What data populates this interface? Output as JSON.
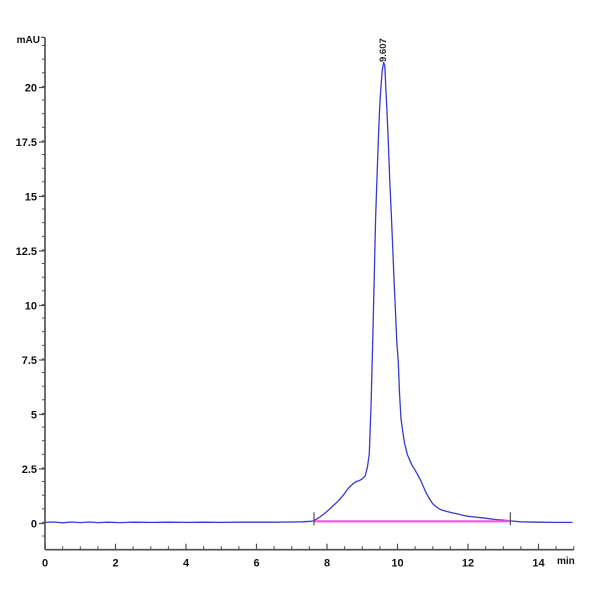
{
  "chart_data": {
    "type": "line",
    "title": "",
    "xlabel": "min",
    "ylabel": "mAU",
    "grid": false,
    "legend": null,
    "x_range": [
      0,
      15
    ],
    "y_range": [
      -1.2,
      22.3
    ],
    "x_ticks_major": [
      0,
      2,
      4,
      6,
      8,
      10,
      12,
      14
    ],
    "x_tick_labels": [
      "0",
      "2",
      "4",
      "6",
      "8",
      "10",
      "12",
      "14"
    ],
    "x_minor_step": 0.5,
    "y_ticks_major": [
      0,
      2.5,
      5,
      7.5,
      10,
      12.5,
      15,
      17.5,
      20
    ],
    "y_tick_labels": [
      "0",
      "2.5",
      "5",
      "7.5",
      "10",
      "12.5",
      "15",
      "17.5",
      "20"
    ],
    "y_minor_step": 0.625,
    "peak": {
      "label": "9.607",
      "retention_time_min": 9.607,
      "height_mAU": 21.15
    },
    "integration": {
      "start_min": 7.63,
      "end_min": 13.2,
      "baseline_mAU": 0.1
    },
    "colors": {
      "trace": "#3a3ace",
      "baseline": "#ff55dd",
      "axis": "#4d4d4d",
      "text": "#111111",
      "marker": "#3f3f3f"
    },
    "series": [
      {
        "name": "UV signal",
        "points": [
          [
            0,
            0.05
          ],
          [
            0.25,
            0.07
          ],
          [
            0.5,
            0.03
          ],
          [
            0.75,
            0.07
          ],
          [
            1.0,
            0.04
          ],
          [
            1.25,
            0.07
          ],
          [
            1.5,
            0.04
          ],
          [
            1.8,
            0.06
          ],
          [
            2.1,
            0.04
          ],
          [
            2.5,
            0.06
          ],
          [
            3.0,
            0.05
          ],
          [
            3.5,
            0.06
          ],
          [
            4.0,
            0.05
          ],
          [
            4.5,
            0.06
          ],
          [
            5.0,
            0.05
          ],
          [
            5.5,
            0.06
          ],
          [
            6.0,
            0.06
          ],
          [
            6.5,
            0.06
          ],
          [
            7.0,
            0.07
          ],
          [
            7.3,
            0.08
          ],
          [
            7.55,
            0.1
          ],
          [
            7.63,
            0.13
          ],
          [
            7.8,
            0.3
          ],
          [
            8.0,
            0.55
          ],
          [
            8.15,
            0.78
          ],
          [
            8.3,
            1.0
          ],
          [
            8.45,
            1.28
          ],
          [
            8.6,
            1.6
          ],
          [
            8.72,
            1.8
          ],
          [
            8.82,
            1.92
          ],
          [
            8.92,
            1.97
          ],
          [
            9.0,
            2.05
          ],
          [
            9.08,
            2.18
          ],
          [
            9.15,
            2.6
          ],
          [
            9.2,
            3.2
          ],
          [
            9.25,
            5.5
          ],
          [
            9.3,
            8.5
          ],
          [
            9.35,
            12.0
          ],
          [
            9.38,
            14.0
          ],
          [
            9.42,
            16.0
          ],
          [
            9.46,
            17.8
          ],
          [
            9.5,
            19.3
          ],
          [
            9.53,
            20.0
          ],
          [
            9.57,
            20.8
          ],
          [
            9.607,
            21.15
          ],
          [
            9.64,
            21.0
          ],
          [
            9.67,
            19.9
          ],
          [
            9.7,
            19.0
          ],
          [
            9.74,
            17.5
          ],
          [
            9.78,
            15.8
          ],
          [
            9.82,
            14.3
          ],
          [
            9.86,
            12.8
          ],
          [
            9.9,
            11.2
          ],
          [
            9.95,
            9.5
          ],
          [
            9.98,
            8.3
          ],
          [
            10.02,
            7.5
          ],
          [
            10.06,
            5.9
          ],
          [
            10.1,
            4.8
          ],
          [
            10.15,
            4.2
          ],
          [
            10.2,
            3.7
          ],
          [
            10.28,
            3.15
          ],
          [
            10.35,
            2.9
          ],
          [
            10.42,
            2.65
          ],
          [
            10.5,
            2.45
          ],
          [
            10.65,
            2.0
          ],
          [
            10.8,
            1.45
          ],
          [
            10.9,
            1.15
          ],
          [
            11.0,
            0.9
          ],
          [
            11.15,
            0.7
          ],
          [
            11.25,
            0.62
          ],
          [
            11.4,
            0.55
          ],
          [
            11.55,
            0.49
          ],
          [
            11.7,
            0.44
          ],
          [
            11.85,
            0.38
          ],
          [
            12.0,
            0.33
          ],
          [
            12.2,
            0.3
          ],
          [
            12.4,
            0.26
          ],
          [
            12.6,
            0.22
          ],
          [
            12.8,
            0.18
          ],
          [
            13.1,
            0.14
          ],
          [
            13.2,
            0.12
          ],
          [
            13.5,
            0.08
          ],
          [
            14.0,
            0.06
          ],
          [
            14.5,
            0.05
          ],
          [
            14.95,
            0.05
          ]
        ]
      }
    ]
  }
}
